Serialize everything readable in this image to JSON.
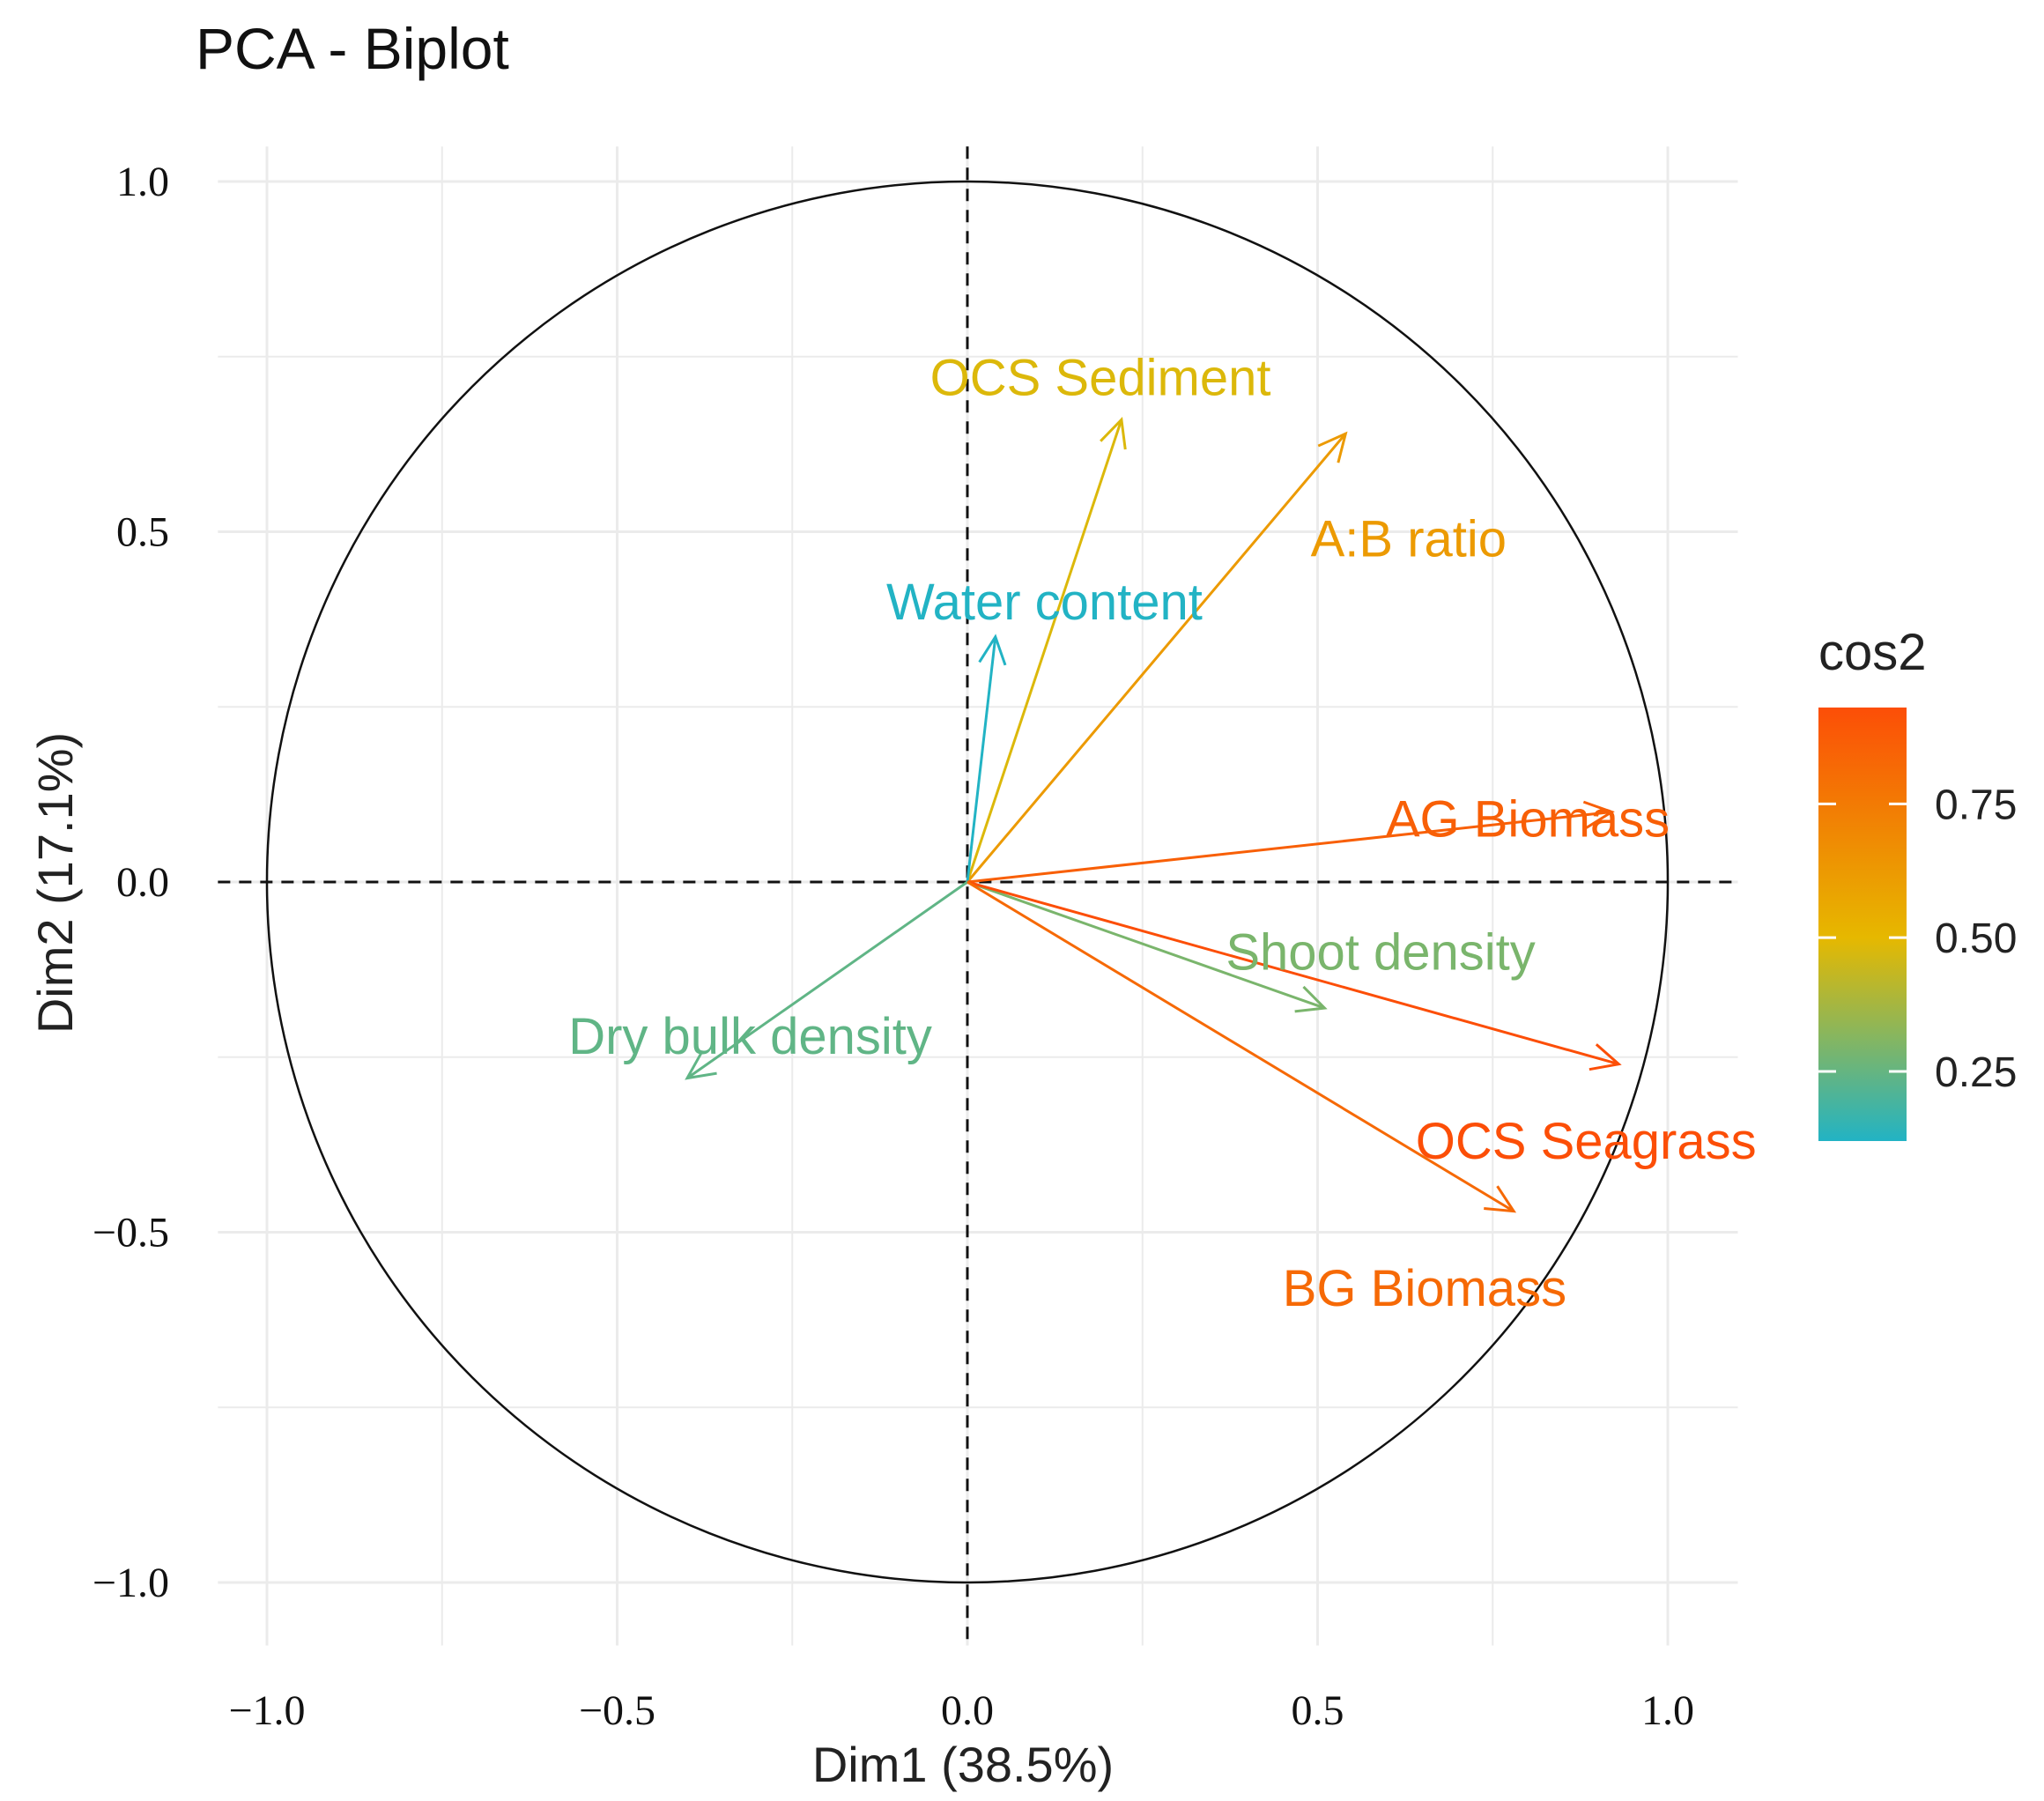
{
  "chart_data": {
    "type": "scatter",
    "title": "PCA - Biplot",
    "xlabel": "Dim1 (38.5%)",
    "ylabel": "Dim2 (17.1%)",
    "xlim": [
      -1.07,
      1.1
    ],
    "ylim": [
      -1.09,
      1.05
    ],
    "xticks": [
      -1.0,
      -0.5,
      0.0,
      0.5,
      1.0
    ],
    "yticks": [
      -1.0,
      -0.5,
      0.0,
      0.5,
      1.0
    ],
    "xtick_labels": [
      "−1.0",
      "−0.5",
      "0.0",
      "0.5",
      "1.0"
    ],
    "ytick_labels": [
      "−1.0",
      "−0.5",
      "0.0",
      "0.5",
      "1.0"
    ],
    "grid": true,
    "correlation_circle": true,
    "variables": [
      {
        "name": "OCS Sediment",
        "x": 0.22,
        "y": 0.66,
        "cos2": 0.48
      },
      {
        "name": "A:B ratio",
        "x": 0.54,
        "y": 0.64,
        "cos2": 0.62
      },
      {
        "name": "Water content",
        "x": 0.04,
        "y": 0.35,
        "cos2": 0.12
      },
      {
        "name": "AG Biomass",
        "x": 0.92,
        "y": 0.1,
        "cos2": 0.86
      },
      {
        "name": "Shoot density",
        "x": 0.51,
        "y": -0.18,
        "cos2": 0.29
      },
      {
        "name": "Dry bulk density",
        "x": -0.4,
        "y": -0.28,
        "cos2": 0.24
      },
      {
        "name": "OCS Seagrass",
        "x": 0.93,
        "y": -0.26,
        "cos2": 0.93
      },
      {
        "name": "BG Biomass",
        "x": 0.78,
        "y": -0.47,
        "cos2": 0.82
      }
    ],
    "legend": {
      "title": "cos2",
      "position": "right",
      "range": [
        0.12,
        0.93
      ],
      "ticks": [
        0.25,
        0.5,
        0.75
      ],
      "tick_labels": [
        "0.25",
        "0.50",
        "0.75"
      ],
      "gradient": [
        {
          "value": 0.12,
          "color": "#22b3c4"
        },
        {
          "value": 0.5,
          "color": "#e6b800"
        },
        {
          "value": 0.93,
          "color": "#fc4e07"
        }
      ]
    }
  }
}
